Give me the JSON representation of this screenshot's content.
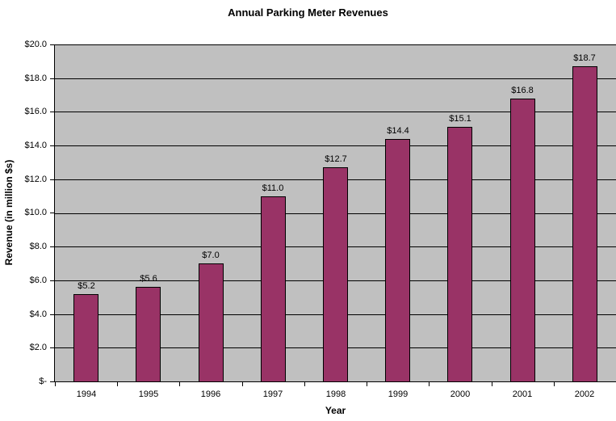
{
  "chart_data": {
    "type": "bar",
    "title": "Annual Parking Meter Revenues",
    "xlabel": "Year",
    "ylabel": "Revenue (in million $s)",
    "categories": [
      "1994",
      "1995",
      "1996",
      "1997",
      "1998",
      "1999",
      "2000",
      "2001",
      "2002"
    ],
    "values": [
      5.2,
      5.6,
      7.0,
      11.0,
      12.7,
      14.4,
      15.1,
      16.8,
      18.7
    ],
    "data_labels": [
      "$5.2",
      "$5.6",
      "$7.0",
      "$11.0",
      "$12.7",
      "$14.4",
      "$15.1",
      "$16.8",
      "$18.7"
    ],
    "y_ticks": [
      {
        "value": 0,
        "label": "$-"
      },
      {
        "value": 2,
        "label": "$2.0"
      },
      {
        "value": 4,
        "label": "$4.0"
      },
      {
        "value": 6,
        "label": "$6.0"
      },
      {
        "value": 8,
        "label": "$8.0"
      },
      {
        "value": 10,
        "label": "$10.0"
      },
      {
        "value": 12,
        "label": "$12.0"
      },
      {
        "value": 14,
        "label": "$14.0"
      },
      {
        "value": 16,
        "label": "$16.0"
      },
      {
        "value": 18,
        "label": "$18.0"
      },
      {
        "value": 20,
        "label": "$20.0"
      }
    ],
    "ylim": [
      0,
      20
    ],
    "grid": true,
    "legend": "none",
    "colors": {
      "bar_fill": "#993366",
      "bar_border": "#000000",
      "plot_background": "#C0C0C0",
      "gridline": "#000000",
      "axis_line": "#000000",
      "text": "#000000",
      "canvas_background": "#FFFFFF"
    }
  }
}
